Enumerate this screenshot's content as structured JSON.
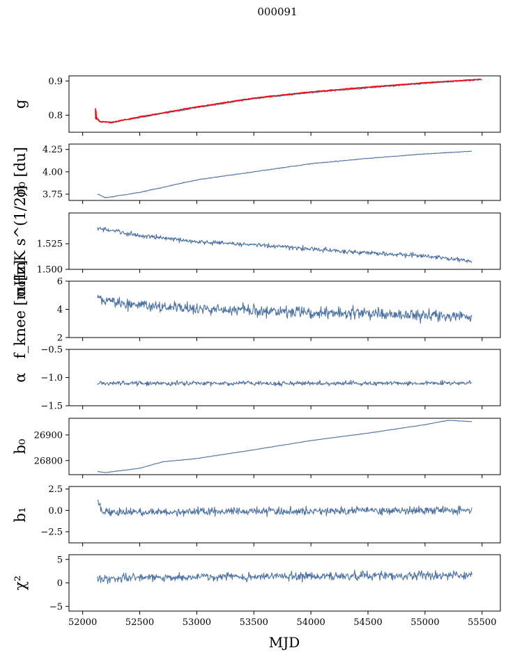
{
  "figure_title": "000091",
  "colors": {
    "series": "#4c72a5",
    "overlay": "#ff0000"
  },
  "chart_data": {
    "type": "line",
    "title": "000091",
    "xlabel": "MJD",
    "xlim": [
      51880,
      55660
    ],
    "x_ticks": [
      52000,
      52500,
      53000,
      53500,
      54000,
      54500,
      55000,
      55500
    ],
    "x_range_data": [
      52120,
      55410
    ],
    "panels": [
      {
        "name": "g",
        "ylabel": "g",
        "ylim": [
          0.75,
          0.915
        ],
        "y_ticks": [
          0.8,
          0.9
        ],
        "y_tick_labels": [
          "0.8",
          "0.9"
        ],
        "profile": [
          [
            52120,
            0.795
          ],
          [
            52150,
            0.782
          ],
          [
            52250,
            0.778
          ],
          [
            52500,
            0.793
          ],
          [
            53000,
            0.822
          ],
          [
            53500,
            0.848
          ],
          [
            54000,
            0.866
          ],
          [
            54500,
            0.88
          ],
          [
            55000,
            0.893
          ],
          [
            55500,
            0.904
          ]
        ],
        "noise": 0.002,
        "overlay": {
          "name": "g-fit",
          "profile": [
            [
              52110,
              0.796
            ],
            [
              52150,
              0.781
            ],
            [
              52250,
              0.779
            ],
            [
              52500,
              0.795
            ],
            [
              53000,
              0.824
            ],
            [
              53500,
              0.85
            ],
            [
              54000,
              0.868
            ],
            [
              54500,
              0.882
            ],
            [
              55000,
              0.895
            ],
            [
              55490,
              0.905
            ]
          ],
          "noise": 0.0012
        }
      },
      {
        "name": "sigma0-du",
        "ylabel": "σ₀ [du]",
        "ylim": [
          3.68,
          4.31
        ],
        "y_ticks": [
          3.75,
          4.0,
          4.25
        ],
        "y_tick_labels": [
          "3.75",
          "4.00",
          "4.25"
        ],
        "profile": [
          [
            52130,
            3.75
          ],
          [
            52200,
            3.71
          ],
          [
            52500,
            3.77
          ],
          [
            53000,
            3.91
          ],
          [
            53500,
            4.0
          ],
          [
            54000,
            4.09
          ],
          [
            54500,
            4.15
          ],
          [
            55000,
            4.2
          ],
          [
            55410,
            4.23
          ]
        ],
        "noise": 0.004
      },
      {
        "name": "sigma0-mk",
        "ylabel": "σ₀[mK s^(1/2)]",
        "ylim": [
          1.5,
          1.555
        ],
        "y_ticks": [
          1.5,
          1.525
        ],
        "y_tick_labels": [
          "1.500",
          "1.525"
        ],
        "profile": [
          [
            52130,
            1.54
          ],
          [
            52500,
            1.533
          ],
          [
            53000,
            1.527
          ],
          [
            53500,
            1.524
          ],
          [
            54000,
            1.52
          ],
          [
            54500,
            1.516
          ],
          [
            55000,
            1.513
          ],
          [
            55410,
            1.508
          ]
        ],
        "noise": 0.0022
      },
      {
        "name": "f-knee",
        "ylabel": "f_knee [mHz]",
        "ylim": [
          2,
          6
        ],
        "y_ticks": [
          2,
          4,
          6
        ],
        "y_tick_labels": [
          "2",
          "4",
          "6"
        ],
        "profile": [
          [
            52130,
            4.7
          ],
          [
            52500,
            4.3
          ],
          [
            53000,
            4.0
          ],
          [
            54000,
            3.8
          ],
          [
            55410,
            3.5
          ]
        ],
        "noise": 0.4
      },
      {
        "name": "alpha",
        "ylabel": "α",
        "ylim": [
          -1.5,
          -0.5
        ],
        "y_ticks": [
          -1.5,
          -1.0,
          -0.5
        ],
        "y_tick_labels": [
          "−1.5",
          "−1.0",
          "−0.5"
        ],
        "profile": [
          [
            52130,
            -1.1
          ],
          [
            55410,
            -1.1
          ]
        ],
        "noise": 0.04
      },
      {
        "name": "b0",
        "ylabel": "b₀",
        "ylim": [
          26745,
          26965
        ],
        "y_ticks": [
          26800,
          26900
        ],
        "y_tick_labels": [
          "26800",
          "26900"
        ],
        "profile": [
          [
            52130,
            26757
          ],
          [
            52200,
            26753
          ],
          [
            52500,
            26770
          ],
          [
            52700,
            26795
          ],
          [
            53000,
            26808
          ],
          [
            53500,
            26842
          ],
          [
            54000,
            26878
          ],
          [
            54500,
            26907
          ],
          [
            55000,
            26940
          ],
          [
            55200,
            26957
          ],
          [
            55410,
            26952
          ]
        ],
        "noise": 0.8
      },
      {
        "name": "b1",
        "ylabel": "b₁",
        "ylim": [
          -3.8,
          2.8
        ],
        "y_ticks": [
          -2.5,
          0.0,
          2.5
        ],
        "y_tick_labels": [
          "−2.5",
          "0.0",
          "2.5"
        ],
        "profile": [
          [
            52130,
            1.2
          ],
          [
            52170,
            -0.2
          ],
          [
            55410,
            0.0
          ]
        ],
        "noise": 0.45
      },
      {
        "name": "chi2",
        "ylabel": "χ²",
        "ylim": [
          -6,
          6
        ],
        "y_ticks": [
          -5,
          0,
          5
        ],
        "y_tick_labels": [
          "−5",
          "0",
          "5"
        ],
        "profile": [
          [
            52130,
            0.8
          ],
          [
            52500,
            1.2
          ],
          [
            55410,
            1.6
          ]
        ],
        "noise": 0.9
      }
    ]
  }
}
